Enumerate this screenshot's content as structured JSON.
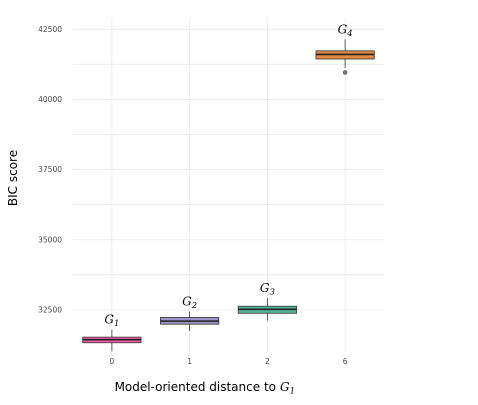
{
  "chart_data": {
    "type": "boxplot",
    "xlabel": "Model-oriented distance to",
    "xlabel_math": {
      "symbol": "G",
      "subscript": "1"
    },
    "ylabel": "BIC score",
    "ylim": [
      31000,
      42900
    ],
    "yticks": [
      32500,
      35000,
      37500,
      40000,
      42500
    ],
    "ytick_labels": [
      "32500",
      "35000",
      "37500",
      "40000",
      "42500"
    ],
    "grid": true,
    "categories": [
      "0",
      "1",
      "2",
      "6"
    ],
    "boxes": [
      {
        "category": "0",
        "label": {
          "symbol": "G",
          "subscript": "1"
        },
        "color": "#e7298a",
        "whisker_low": 31020,
        "q1": 31330,
        "median": 31440,
        "q3": 31530,
        "whisker_high": 31800,
        "outliers": []
      },
      {
        "category": "1",
        "label": {
          "symbol": "G",
          "subscript": "2"
        },
        "color": "#7570b3",
        "whisker_low": 31750,
        "q1": 31990,
        "median": 32100,
        "q3": 32230,
        "whisker_high": 32440,
        "outliers": []
      },
      {
        "category": "2",
        "label": {
          "symbol": "G",
          "subscript": "3"
        },
        "color": "#1b9e77",
        "whisker_low": 32120,
        "q1": 32380,
        "median": 32520,
        "q3": 32630,
        "whisker_high": 32920,
        "outliers": []
      },
      {
        "category": "6",
        "label": {
          "symbol": "G",
          "subscript": "4"
        },
        "color": "#d95f02",
        "whisker_low": 41120,
        "q1": 41440,
        "median": 41600,
        "q3": 41730,
        "whisker_high": 42140,
        "outliers": [
          40960
        ]
      }
    ]
  }
}
